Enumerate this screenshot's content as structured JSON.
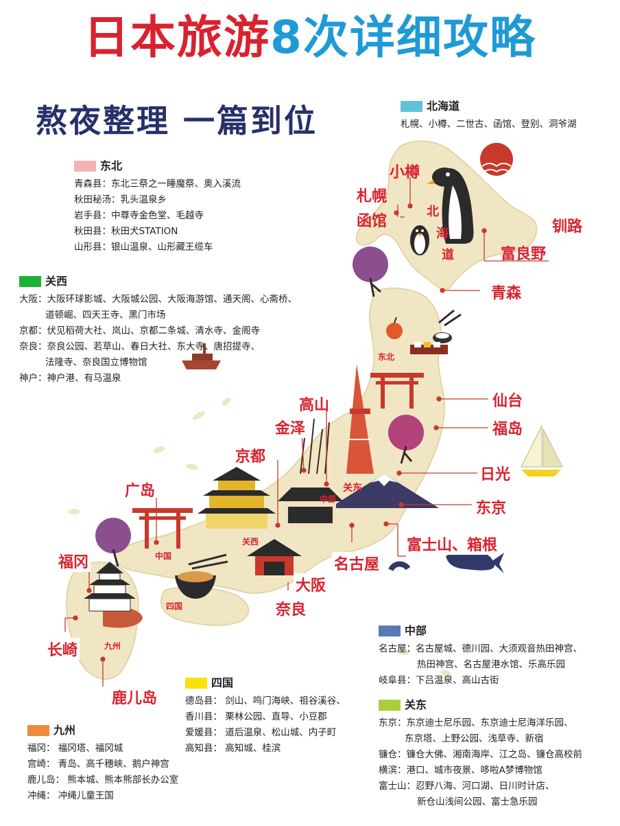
{
  "title": {
    "part1": "日本旅游",
    "part2": "8次详细攻略"
  },
  "subtitle": "熬夜整理 一篇到位",
  "colors": {
    "red": "#d8232f",
    "blue": "#1f9ad6",
    "navy": "#27306b",
    "land": "#f1e6c4"
  },
  "legends": {
    "hokkaido": {
      "name": "北海道",
      "color": "#5ec4d6",
      "lines": [
        "札幌、小樽、二世古、函馆、登别、洞爷湖"
      ]
    },
    "tohoku": {
      "name": "东北",
      "color": "#f2b3b3",
      "lines": [
        "青森县：东北三祭之一睡魔祭、奥入溪流",
        "秋田秘汤：乳头温泉乡",
        "岩手县：中尊寺金色堂、毛越寺",
        "秋田县：秋田犬STATION",
        "山形县：银山温泉、山形藏王缆车"
      ]
    },
    "kansai": {
      "name": "关西",
      "color": "#1bb233",
      "lines": [
        "大阪：大阪环球影城、大阪城公园、大阪海游馆、通天阁、心斋桥、",
        "道顿崛、四天王寺、黑门市场",
        "京都：伏见稻荷大社、岚山、京都二条城、清水寺、金阁寺",
        "奈良：奈良公园、若草山、春日大社、东大寺、唐招提寺、",
        "法隆寺、奈良国立博物馆",
        "神户：神户港、有马温泉"
      ]
    },
    "chubu": {
      "name": "中部",
      "color": "#5a79b5",
      "lines": [
        "名古屋：名古屋城、德川园、大须观音热田神宫、",
        "热田神宫、名古屋港水馆、乐高乐园",
        "岐阜县：下吕温泉、高山古街"
      ]
    },
    "kanto": {
      "name": "关东",
      "color": "#a8cf3a",
      "lines": [
        "东京：东京迪士尼乐园、东京迪士尼海洋乐园、",
        "东京塔、上野公园、浅草寺、新宿",
        "镰仓：镰仓大佛、湘南海岸、江之岛、镰仓高校前",
        "横滨：港口、城市夜景、哆啦A梦博物馆",
        "富士山：忍野八海、河口湖、日川时计店、",
        "新仓山浅间公园、富士急乐园"
      ]
    },
    "shikoku": {
      "name": "四国",
      "color": "#f7e20c",
      "lines": [
        "德岛县： 剑山、鸣门海峡、祖谷溪谷、",
        "香川县： 栗林公园、直导、小豆郡",
        "爱媛县： 道后温泉、松山城、内子町",
        "高知县： 高知城、桂滨"
      ]
    },
    "kyushu": {
      "name": "九州",
      "color": "#ef8a3c",
      "lines": [
        "福冈： 福冈塔、福冈城",
        "宫崎： 青岛、高千穗峡、鹅户神宫",
        "鹿儿岛： 熊本城、熊本熊部长办公室",
        "冲绳： 冲绳儿童王国"
      ]
    }
  },
  "map_labels": {
    "cities": [
      "小樽",
      "札幌",
      "函馆",
      "钏路",
      "富良野",
      "青森",
      "仙台",
      "福岛",
      "日光",
      "东京",
      "富士山、箱根",
      "名古屋",
      "大阪",
      "奈良",
      "京都",
      "金泽",
      "高山",
      "广岛",
      "福冈",
      "长崎",
      "鹿儿岛"
    ],
    "hokkaido_vertical": [
      "北",
      "海",
      "道"
    ],
    "regions": [
      "东北",
      "关东",
      "关西",
      "中国",
      "四国",
      "九州",
      "中部"
    ]
  },
  "icons": [
    "sun-icon",
    "penguin-icon",
    "cherry-tree-icon",
    "apple-icon",
    "sushi-icon",
    "torii-gate-icon",
    "tokyo-tower-icon",
    "mount-fuji-icon",
    "golden-pavilion-icon",
    "castle-icon",
    "ramen-bowl-icon",
    "whale-icon",
    "sailboat-icon",
    "ship-icon",
    "bamboo-icon"
  ]
}
